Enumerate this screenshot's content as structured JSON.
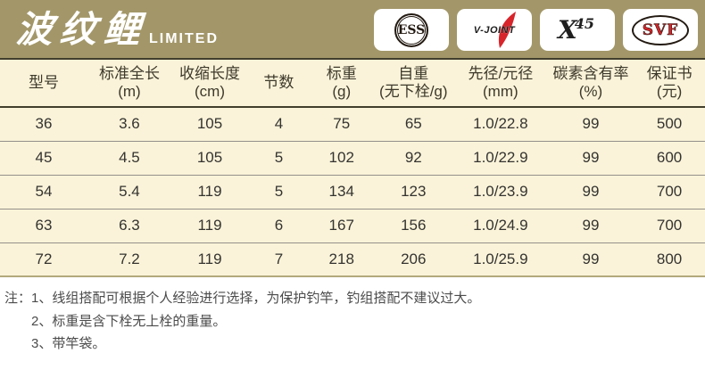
{
  "brand": {
    "title": "波纹鲤",
    "subtitle": "LIMITED",
    "badges": [
      {
        "name": "ess-logo",
        "label": "ESS"
      },
      {
        "name": "v-joint-logo",
        "label": "V-JOINT"
      },
      {
        "name": "x45-logo",
        "label_x": "X",
        "label_45": "45"
      },
      {
        "name": "svf-logo",
        "label": "SVF"
      }
    ]
  },
  "colors": {
    "header_bar": "#a39769",
    "table_background": "#faf3d9",
    "logo_red": "#d7252b",
    "dark_rule": "#413e2d"
  },
  "table": {
    "columns": [
      {
        "title": "型号",
        "unit": ""
      },
      {
        "title": "标准全长",
        "unit": "(m)"
      },
      {
        "title": "收缩长度",
        "unit": "(cm)"
      },
      {
        "title": "节数",
        "unit": ""
      },
      {
        "title": "标重",
        "unit": "(g)"
      },
      {
        "title": "自重",
        "unit": "(无下栓/g)"
      },
      {
        "title": "先径/元径",
        "unit": "(mm)"
      },
      {
        "title": "碳素含有率",
        "unit": "(%)"
      },
      {
        "title": "保证书",
        "unit": "(元)"
      }
    ],
    "rows": [
      [
        "36",
        "3.6",
        "105",
        "4",
        "75",
        "65",
        "1.0/22.8",
        "99",
        "500"
      ],
      [
        "45",
        "4.5",
        "105",
        "5",
        "102",
        "92",
        "1.0/22.9",
        "99",
        "600"
      ],
      [
        "54",
        "5.4",
        "119",
        "5",
        "134",
        "123",
        "1.0/23.9",
        "99",
        "700"
      ],
      [
        "63",
        "6.3",
        "119",
        "6",
        "167",
        "156",
        "1.0/24.9",
        "99",
        "700"
      ],
      [
        "72",
        "7.2",
        "119",
        "7",
        "218",
        "206",
        "1.0/25.9",
        "99",
        "800"
      ]
    ]
  },
  "notes": {
    "prefix": "注：",
    "items": [
      "1、线组搭配可根据个人经验进行选择，为保护钓竿，钓组搭配不建议过大。",
      "2、标重是含下栓无上栓的重量。",
      "3、带竿袋。"
    ]
  }
}
